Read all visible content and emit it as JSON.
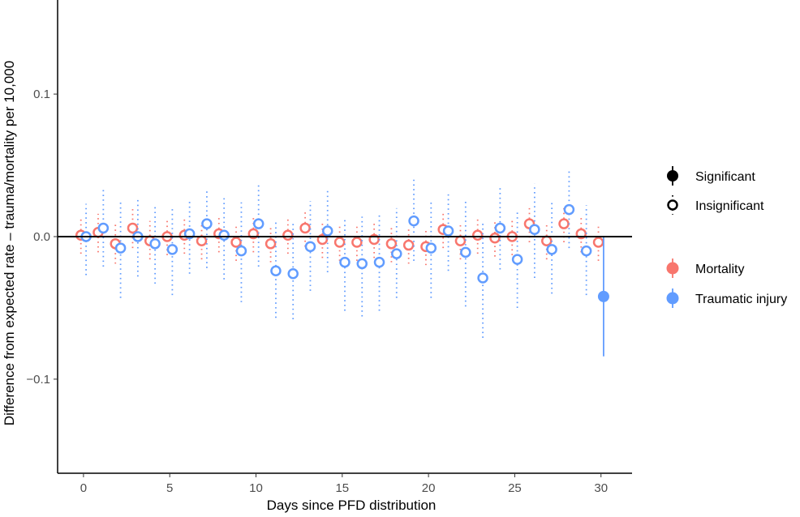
{
  "chart_data": {
    "type": "scatter",
    "xlabel": "Days since PFD distribution",
    "ylabel": "Difference from expected rate – trauma/mortality per 10,000",
    "xlim": [
      -1.5,
      31.8
    ],
    "ylim": [
      -0.166,
      0.166
    ],
    "x_ticks": [
      0,
      5,
      10,
      15,
      20,
      25,
      30
    ],
    "x_tick_labels": [
      "0",
      "5",
      "10",
      "15",
      "20",
      "25",
      "30"
    ],
    "y_ticks": [
      -0.1,
      0.0,
      0.1
    ],
    "y_tick_labels": [
      "−0.1",
      "0.0",
      "0.1"
    ],
    "reference_line_y": 0,
    "grid": false,
    "legend_position": "right",
    "significance_legend": [
      {
        "label": "Significant",
        "style": "filled"
      },
      {
        "label": "Insignificant",
        "style": "open"
      }
    ],
    "series": [
      {
        "name": "Mortality",
        "color": "#F8766D",
        "x": [
          0,
          1,
          2,
          3,
          4,
          5,
          6,
          7,
          8,
          9,
          10,
          11,
          12,
          13,
          14,
          15,
          16,
          17,
          18,
          19,
          20,
          21,
          22,
          23,
          24,
          25,
          26,
          27,
          28,
          29,
          30
        ],
        "y": [
          0.001,
          0.003,
          -0.005,
          0.006,
          -0.003,
          0.0,
          0.001,
          -0.003,
          0.002,
          -0.004,
          0.002,
          -0.005,
          0.001,
          0.006,
          -0.002,
          -0.004,
          -0.004,
          -0.002,
          -0.005,
          -0.006,
          -0.007,
          0.005,
          -0.003,
          0.001,
          -0.001,
          0.0,
          0.009,
          -0.003,
          0.009,
          0.002,
          -0.004
        ],
        "ci_low": [
          -0.012,
          -0.011,
          -0.019,
          -0.008,
          -0.016,
          -0.013,
          -0.012,
          -0.016,
          -0.011,
          -0.017,
          -0.011,
          -0.018,
          -0.012,
          -0.007,
          -0.015,
          -0.017,
          -0.017,
          -0.015,
          -0.018,
          -0.019,
          -0.02,
          -0.008,
          -0.016,
          -0.012,
          -0.014,
          -0.013,
          -0.004,
          -0.016,
          -0.004,
          -0.011,
          -0.017
        ],
        "ci_high": [
          0.014,
          0.016,
          0.009,
          0.02,
          0.011,
          0.013,
          0.014,
          0.01,
          0.015,
          0.009,
          0.015,
          0.008,
          0.014,
          0.019,
          0.011,
          0.009,
          0.009,
          0.011,
          0.008,
          0.007,
          0.006,
          0.018,
          0.01,
          0.014,
          0.012,
          0.013,
          0.022,
          0.01,
          0.022,
          0.015,
          0.009
        ],
        "significant": [
          false,
          false,
          false,
          false,
          false,
          false,
          false,
          false,
          false,
          false,
          false,
          false,
          false,
          false,
          false,
          false,
          false,
          false,
          false,
          false,
          false,
          false,
          false,
          false,
          false,
          false,
          false,
          false,
          false,
          false,
          false
        ]
      },
      {
        "name": "Traumatic injury",
        "color": "#619CFF",
        "x": [
          0,
          1,
          2,
          3,
          4,
          5,
          6,
          7,
          8,
          9,
          10,
          11,
          12,
          13,
          14,
          15,
          16,
          17,
          18,
          19,
          20,
          21,
          22,
          23,
          24,
          25,
          26,
          27,
          28,
          29,
          30
        ],
        "y": [
          0.0,
          0.006,
          -0.008,
          0.0,
          -0.005,
          -0.009,
          0.002,
          0.009,
          0.001,
          -0.01,
          0.009,
          -0.024,
          -0.026,
          -0.007,
          0.004,
          -0.018,
          -0.019,
          -0.018,
          -0.012,
          0.011,
          -0.008,
          0.004,
          -0.011,
          -0.029,
          0.006,
          -0.016,
          0.005,
          -0.009,
          0.019,
          -0.01,
          -0.042
        ],
        "ci_low": [
          -0.027,
          -0.021,
          -0.043,
          -0.028,
          -0.033,
          -0.041,
          -0.026,
          -0.022,
          -0.03,
          -0.046,
          -0.021,
          -0.057,
          -0.058,
          -0.038,
          -0.025,
          -0.052,
          -0.056,
          -0.052,
          -0.043,
          -0.017,
          -0.043,
          -0.024,
          -0.049,
          -0.071,
          -0.023,
          -0.05,
          -0.029,
          -0.04,
          -0.008,
          -0.041,
          -0.084
        ],
        "ci_high": [
          0.023,
          0.034,
          0.026,
          0.027,
          0.023,
          0.02,
          0.025,
          0.034,
          0.029,
          0.024,
          0.038,
          0.01,
          0.01,
          0.025,
          0.033,
          0.013,
          0.014,
          0.015,
          0.02,
          0.041,
          0.025,
          0.032,
          0.026,
          0.01,
          0.034,
          0.018,
          0.037,
          0.024,
          0.047,
          0.022,
          0.0
        ],
        "significant": [
          false,
          false,
          false,
          false,
          false,
          false,
          false,
          false,
          false,
          false,
          false,
          false,
          false,
          false,
          false,
          false,
          false,
          false,
          false,
          false,
          false,
          false,
          false,
          false,
          false,
          false,
          false,
          false,
          false,
          false,
          true
        ]
      }
    ]
  }
}
